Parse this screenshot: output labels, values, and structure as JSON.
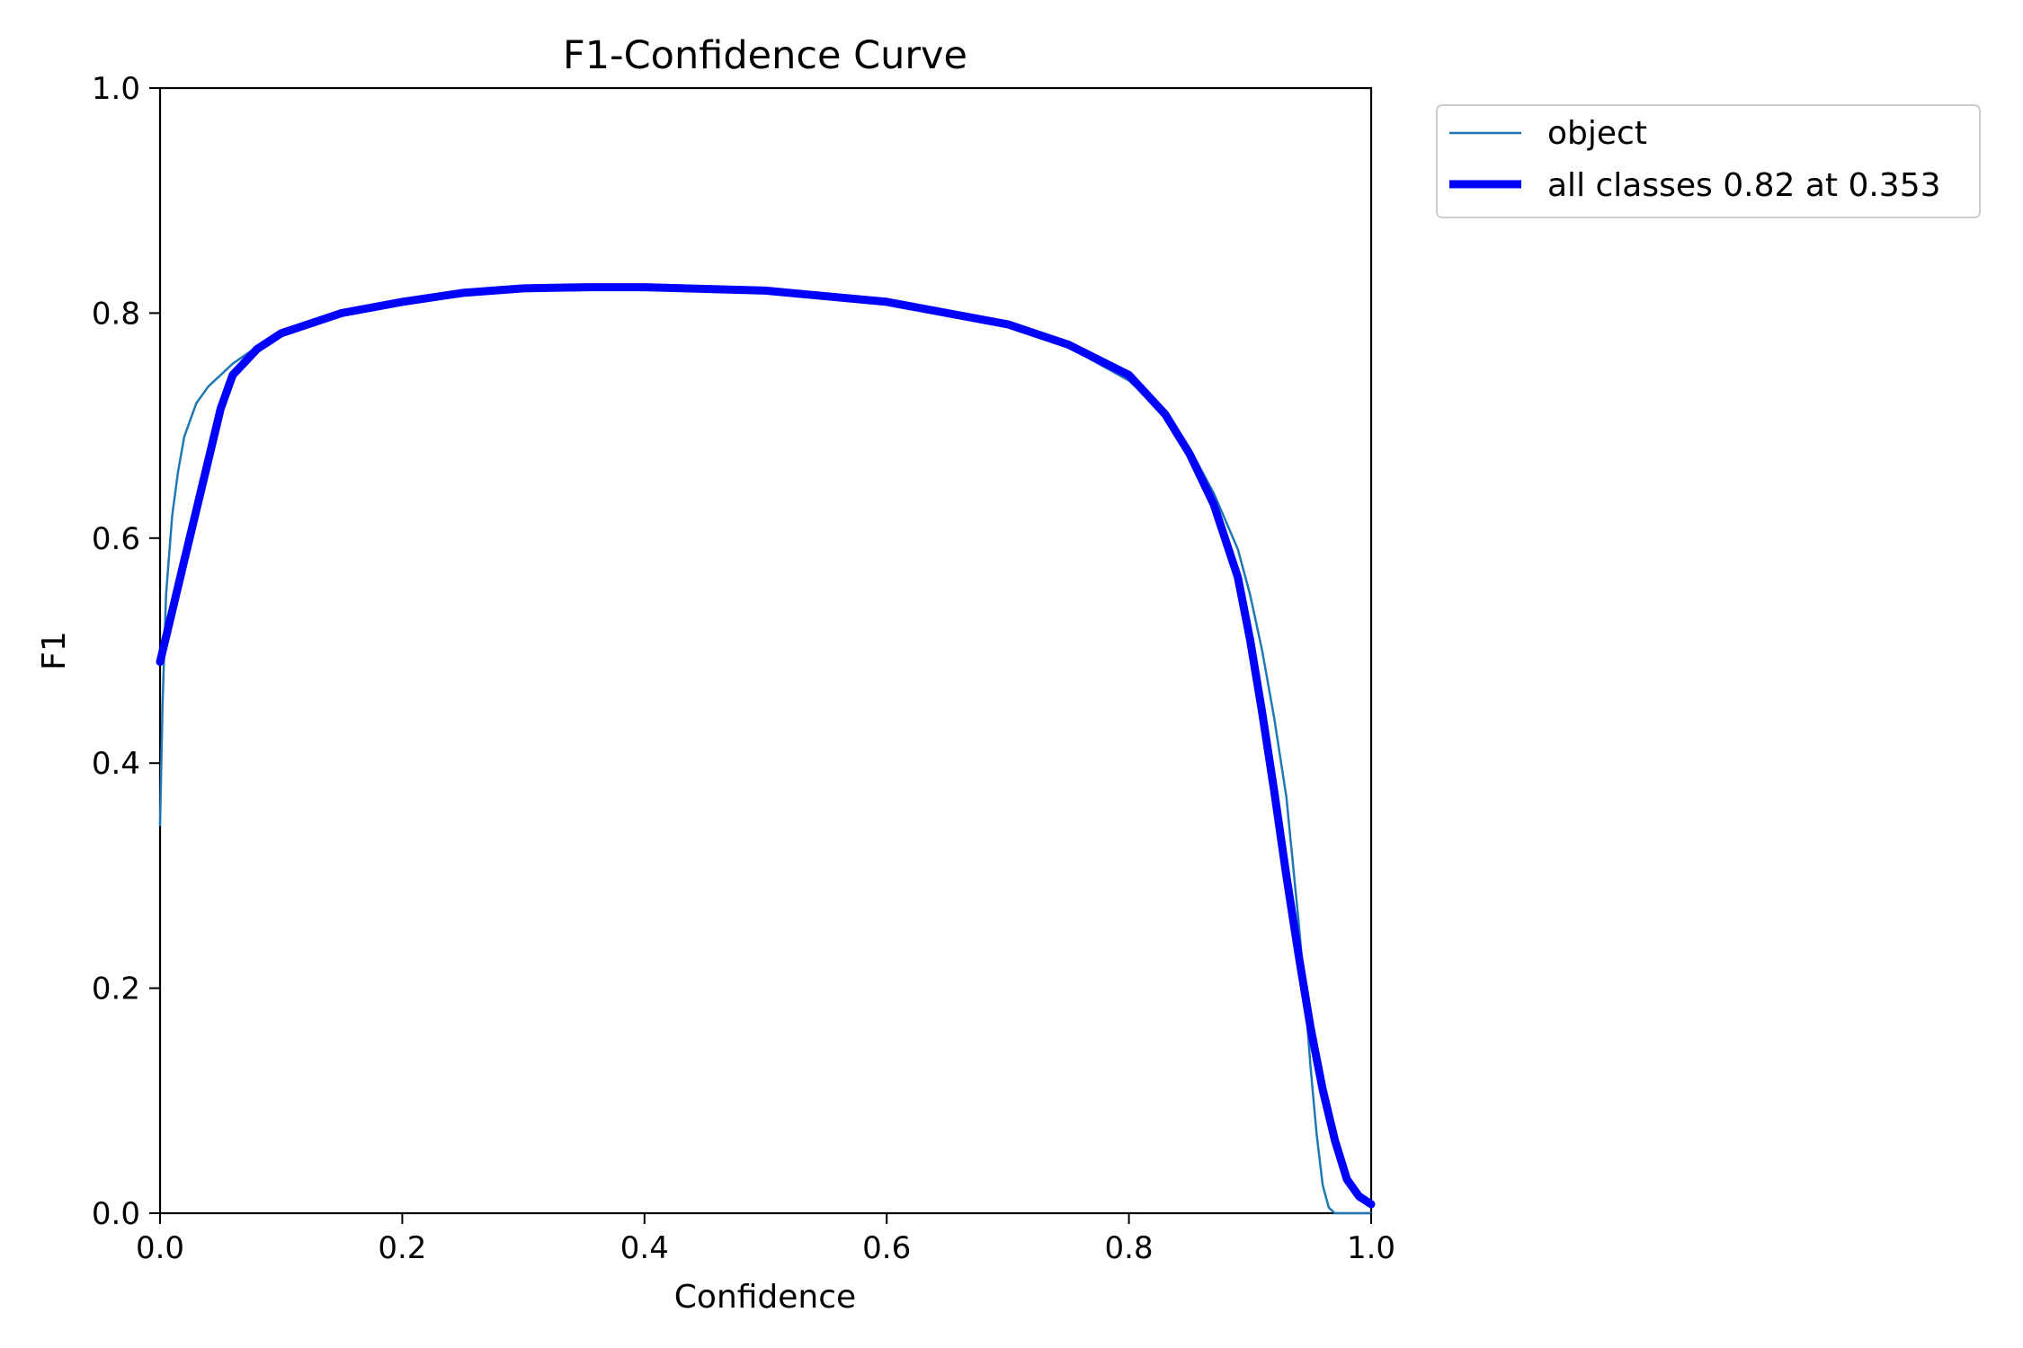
{
  "chart_data": {
    "type": "line",
    "title": "F1-Confidence Curve",
    "xlabel": "Confidence",
    "ylabel": "F1",
    "xlim": [
      0.0,
      1.0
    ],
    "ylim": [
      0.0,
      1.0
    ],
    "xticks": [
      "0.0",
      "0.2",
      "0.4",
      "0.6",
      "0.8",
      "1.0"
    ],
    "yticks": [
      "0.0",
      "0.2",
      "0.4",
      "0.6",
      "0.8",
      "1.0"
    ],
    "grid": false,
    "legend_position": "outside-top-right",
    "series": [
      {
        "name": "object",
        "color": "#1f77b4",
        "x": [
          0.0,
          0.002,
          0.005,
          0.01,
          0.015,
          0.02,
          0.03,
          0.04,
          0.05,
          0.06,
          0.08,
          0.1,
          0.15,
          0.2,
          0.25,
          0.3,
          0.353,
          0.4,
          0.5,
          0.6,
          0.7,
          0.75,
          0.8,
          0.83,
          0.85,
          0.87,
          0.89,
          0.9,
          0.91,
          0.92,
          0.93,
          0.94,
          0.945,
          0.95,
          0.955,
          0.96,
          0.965,
          0.97,
          0.98,
          0.99,
          1.0
        ],
        "y": [
          0.345,
          0.45,
          0.55,
          0.62,
          0.66,
          0.69,
          0.72,
          0.735,
          0.745,
          0.755,
          0.77,
          0.78,
          0.798,
          0.81,
          0.817,
          0.822,
          0.823,
          0.823,
          0.82,
          0.81,
          0.79,
          0.77,
          0.74,
          0.71,
          0.68,
          0.64,
          0.59,
          0.55,
          0.5,
          0.44,
          0.37,
          0.26,
          0.2,
          0.13,
          0.07,
          0.025,
          0.005,
          0.0,
          0.0,
          0.0,
          0.0
        ]
      },
      {
        "name": "all classes 0.82 at 0.353",
        "color": "#0000ff",
        "x": [
          0.0,
          0.01,
          0.02,
          0.03,
          0.04,
          0.05,
          0.06,
          0.08,
          0.1,
          0.15,
          0.2,
          0.25,
          0.3,
          0.353,
          0.4,
          0.5,
          0.6,
          0.7,
          0.75,
          0.8,
          0.83,
          0.85,
          0.87,
          0.89,
          0.9,
          0.91,
          0.92,
          0.93,
          0.94,
          0.95,
          0.96,
          0.97,
          0.98,
          0.99,
          1.0
        ],
        "y": [
          0.49,
          0.535,
          0.58,
          0.625,
          0.67,
          0.715,
          0.745,
          0.768,
          0.782,
          0.8,
          0.81,
          0.818,
          0.822,
          0.823,
          0.823,
          0.82,
          0.81,
          0.79,
          0.772,
          0.745,
          0.71,
          0.675,
          0.63,
          0.565,
          0.51,
          0.445,
          0.375,
          0.3,
          0.23,
          0.165,
          0.11,
          0.065,
          0.03,
          0.015,
          0.008
        ]
      }
    ]
  }
}
